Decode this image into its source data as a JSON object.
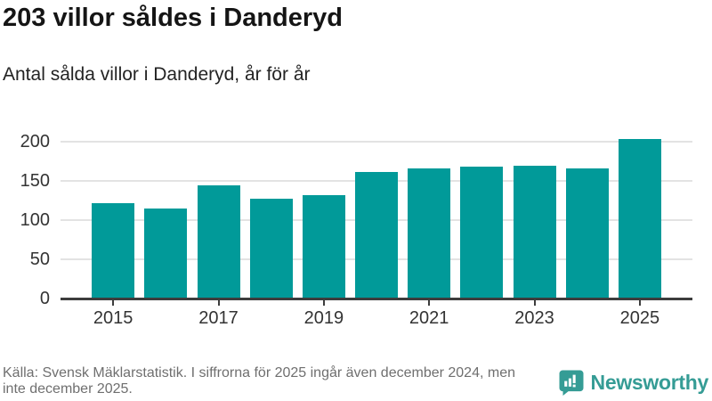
{
  "header": {
    "title": "203 villor såldes i Danderyd",
    "subtitle": "Antal sålda villor i Danderyd, år för år"
  },
  "chart_data": {
    "type": "bar",
    "categories": [
      "2015",
      "2016",
      "2017",
      "2018",
      "2019",
      "2020",
      "2021",
      "2022",
      "2023",
      "2024",
      "2025"
    ],
    "values": [
      122,
      115,
      144,
      127,
      132,
      161,
      166,
      168,
      169,
      166,
      203
    ],
    "x_tick_labels": [
      "2015",
      "2017",
      "2019",
      "2021",
      "2023",
      "2025"
    ],
    "y_ticks": [
      0,
      50,
      100,
      150,
      200
    ],
    "ylim": [
      0,
      215
    ],
    "grid": true,
    "legend": "none",
    "title": "203 villor såldes i Danderyd",
    "xlabel": "",
    "ylabel": "",
    "bar_color": "#019a99",
    "axis_color": "#3d3d3d",
    "grid_color": "#e3e3e3",
    "tick_label_color": "#333333"
  },
  "footer": {
    "source_line1": "Källa: Svensk Mäklarstatistik. I siffrorna för 2025 ingår även december 2024, men",
    "source_line2": "inte december 2025.",
    "logo": {
      "text": "Newsworthy",
      "color": "#359c95",
      "icon": "speech-bubble-bar-chart-icon"
    }
  }
}
